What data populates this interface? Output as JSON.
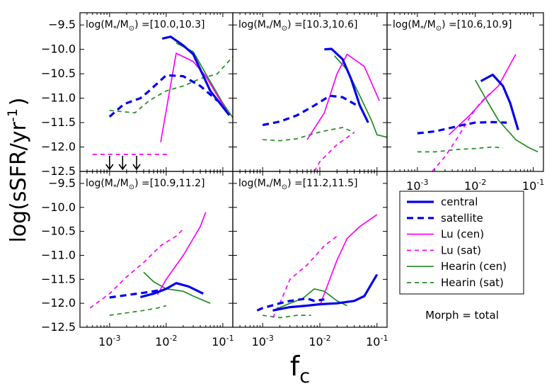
{
  "chart_data": {
    "type": "line",
    "xlabel": "f",
    "xlabel_sub": "c",
    "ylabel": "log(sSFR/yr",
    "ylabel_sup": "-1",
    "ylabel_close": ")",
    "xscale": "log",
    "xlim": [
      0.0003,
      0.15
    ],
    "ylim": [
      -12.5,
      -9.25
    ],
    "yticks": [
      -12.5,
      -12.0,
      -11.5,
      -11.0,
      -10.5,
      -10.0,
      -9.5
    ],
    "ytick_labels": [
      "−12.5",
      "−12.0",
      "−11.5",
      "−11.0",
      "−10.5",
      "−10.0",
      "−9.5"
    ],
    "xticks": [
      0.001,
      0.01,
      0.1
    ],
    "xtick_labels": [
      [
        "10",
        "-3"
      ],
      [
        "10",
        "-2"
      ],
      [
        "10",
        "-1"
      ]
    ],
    "series_styles": {
      "central": {
        "color": "#0000ee",
        "dash": "",
        "width": 3.2
      },
      "satellite": {
        "color": "#0000ee",
        "dash": "9,6",
        "width": 3.2
      },
      "lu_cen": {
        "color": "#ff00ff",
        "dash": "",
        "width": 1.7
      },
      "lu_sat": {
        "color": "#ff00ff",
        "dash": "6,5",
        "width": 1.7
      },
      "hearin_cen": {
        "color": "#228b22",
        "dash": "",
        "width": 1.7
      },
      "hearin_sat": {
        "color": "#228b22",
        "dash": "6,5",
        "width": 1.7
      }
    },
    "legend": {
      "position": "lower-right",
      "entries": [
        {
          "key": "central",
          "label": "central"
        },
        {
          "key": "satellite",
          "label": "satellite"
        },
        {
          "key": "lu_cen",
          "label": "Lu (cen)"
        },
        {
          "key": "lu_sat",
          "label": "Lu (sat)"
        },
        {
          "key": "hearin_cen",
          "label": "Hearin (cen)"
        },
        {
          "key": "hearin_sat",
          "label": "Hearin (sat)"
        }
      ]
    },
    "annotation": "Morph = total",
    "panels": [
      {
        "title_pre": "log(M",
        "title_mid": "/M",
        "title_post": ") =[10.0,10.3]",
        "series": {
          "central": [
            [
              0.0085,
              -9.78
            ],
            [
              0.012,
              -9.74
            ],
            [
              0.02,
              -9.92
            ],
            [
              0.03,
              -10.1
            ],
            [
              0.06,
              -10.85
            ],
            [
              0.13,
              -11.35
            ]
          ],
          "satellite": [
            [
              0.001,
              -11.38
            ],
            [
              0.0018,
              -11.12
            ],
            [
              0.0035,
              -11.0
            ],
            [
              0.005,
              -10.85
            ],
            [
              0.01,
              -10.53
            ],
            [
              0.02,
              -10.55
            ],
            [
              0.04,
              -10.75
            ],
            [
              0.08,
              -11.05
            ]
          ],
          "lu_cen": [
            [
              0.008,
              -11.9
            ],
            [
              0.015,
              -10.08
            ],
            [
              0.03,
              -10.25
            ],
            [
              0.05,
              -10.55
            ],
            [
              0.08,
              -10.95
            ],
            [
              0.13,
              -11.35
            ]
          ],
          "lu_sat": [
            [
              0.0005,
              -12.15
            ],
            [
              0.011,
              -12.15
            ]
          ],
          "hearin_cen": [
            [
              0.015,
              -9.87
            ],
            [
              0.03,
              -10.05
            ],
            [
              0.05,
              -10.5
            ],
            [
              0.1,
              -11.1
            ],
            [
              0.15,
              -11.4
            ]
          ],
          "hearin_sat": [
            [
              0.001,
              -11.25
            ],
            [
              0.0018,
              -11.28
            ],
            [
              0.0028,
              -11.3
            ],
            [
              0.005,
              -11.05
            ],
            [
              0.01,
              -10.85
            ],
            [
              0.02,
              -10.75
            ],
            [
              0.04,
              -10.6
            ],
            [
              0.08,
              -10.5
            ],
            [
              0.15,
              -10.15
            ]
          ]
        },
        "arrows": [
          0.001,
          0.0017,
          0.003
        ]
      },
      {
        "title_pre": "log(M",
        "title_mid": "/M",
        "title_post": ") =[10.3,10.6]",
        "series": {
          "central": [
            [
              0.012,
              -10.0
            ],
            [
              0.016,
              -9.99
            ],
            [
              0.025,
              -10.2
            ],
            [
              0.035,
              -10.6
            ],
            [
              0.05,
              -11.15
            ],
            [
              0.07,
              -11.5
            ]
          ],
          "satellite": [
            [
              0.001,
              -11.55
            ],
            [
              0.002,
              -11.48
            ],
            [
              0.004,
              -11.35
            ],
            [
              0.008,
              -11.15
            ],
            [
              0.015,
              -10.95
            ],
            [
              0.025,
              -10.98
            ],
            [
              0.045,
              -11.15
            ]
          ],
          "lu_cen": [
            [
              0.006,
              -11.85
            ],
            [
              0.012,
              -11.3
            ],
            [
              0.02,
              -10.5
            ],
            [
              0.03,
              -10.1
            ],
            [
              0.06,
              -10.35
            ],
            [
              0.11,
              -11.05
            ]
          ],
          "lu_sat": [
            [
              0.008,
              -12.5
            ],
            [
              0.01,
              -12.3
            ],
            [
              0.02,
              -11.95
            ],
            [
              0.04,
              -11.7
            ]
          ],
          "hearin_cen": [
            [
              0.018,
              -10.13
            ],
            [
              0.03,
              -10.42
            ],
            [
              0.05,
              -10.95
            ],
            [
              0.08,
              -11.45
            ],
            [
              0.1,
              -11.75
            ],
            [
              0.15,
              -11.8
            ]
          ],
          "hearin_sat": [
            [
              0.001,
              -11.85
            ],
            [
              0.002,
              -11.87
            ],
            [
              0.004,
              -11.83
            ],
            [
              0.008,
              -11.72
            ],
            [
              0.015,
              -11.65
            ],
            [
              0.025,
              -11.6
            ],
            [
              0.04,
              -11.7
            ]
          ]
        },
        "arrows": []
      },
      {
        "title_pre": "log(M",
        "title_mid": "/M",
        "title_post": ") =[10.6,10.9]",
        "series": {
          "central": [
            [
              0.0125,
              -10.65
            ],
            [
              0.02,
              -10.52
            ],
            [
              0.03,
              -10.75
            ],
            [
              0.04,
              -11.1
            ],
            [
              0.055,
              -11.65
            ]
          ],
          "satellite": [
            [
              0.001,
              -11.72
            ],
            [
              0.002,
              -11.68
            ],
            [
              0.004,
              -11.6
            ],
            [
              0.006,
              -11.55
            ],
            [
              0.01,
              -11.5
            ],
            [
              0.02,
              -11.49
            ],
            [
              0.035,
              -11.5
            ]
          ],
          "lu_cen": [
            [
              0.0035,
              -11.75
            ],
            [
              0.008,
              -11.35
            ],
            [
              0.015,
              -11.0
            ],
            [
              0.025,
              -10.75
            ],
            [
              0.05,
              -10.1
            ]
          ],
          "lu_sat": [
            [
              0.0018,
              -12.5
            ],
            [
              0.003,
              -12.2
            ],
            [
              0.005,
              -11.8
            ],
            [
              0.008,
              -11.4
            ],
            [
              0.012,
              -11.1
            ],
            [
              0.02,
              -10.85
            ]
          ],
          "hearin_cen": [
            [
              0.01,
              -10.63
            ],
            [
              0.015,
              -11.0
            ],
            [
              0.025,
              -11.45
            ],
            [
              0.05,
              -11.85
            ],
            [
              0.08,
              -12.0
            ],
            [
              0.12,
              -12.1
            ]
          ],
          "hearin_sat": [
            [
              0.001,
              -12.1
            ],
            [
              0.002,
              -12.1
            ],
            [
              0.005,
              -12.05
            ],
            [
              0.01,
              -12.03
            ],
            [
              0.02,
              -12.0
            ],
            [
              0.03,
              -12.02
            ]
          ]
        },
        "arrows": []
      },
      {
        "title_pre": "log(M",
        "title_mid": "/M",
        "title_post": ") =[10.9,11.2]",
        "series": {
          "central": [
            [
              0.0035,
              -11.87
            ],
            [
              0.006,
              -11.8
            ],
            [
              0.01,
              -11.7
            ],
            [
              0.015,
              -11.58
            ],
            [
              0.025,
              -11.65
            ],
            [
              0.045,
              -11.8
            ]
          ],
          "satellite": [
            [
              0.001,
              -11.88
            ],
            [
              0.002,
              -11.83
            ],
            [
              0.004,
              -11.78
            ],
            [
              0.006,
              -11.75
            ],
            [
              0.008,
              -11.72
            ]
          ],
          "lu_cen": [
            [
              0.007,
              -11.82
            ],
            [
              0.01,
              -11.5
            ],
            [
              0.02,
              -11.0
            ],
            [
              0.04,
              -10.4
            ],
            [
              0.05,
              -10.1
            ]
          ],
          "lu_sat": [
            [
              0.00045,
              -12.1
            ],
            [
              0.001,
              -11.8
            ],
            [
              0.002,
              -11.45
            ],
            [
              0.004,
              -11.15
            ],
            [
              0.008,
              -10.8
            ],
            [
              0.015,
              -10.6
            ],
            [
              0.02,
              -10.45
            ]
          ],
          "hearin_cen": [
            [
              0.004,
              -11.35
            ],
            [
              0.006,
              -11.55
            ],
            [
              0.01,
              -11.7
            ],
            [
              0.02,
              -11.75
            ],
            [
              0.03,
              -11.85
            ],
            [
              0.06,
              -12.0
            ]
          ],
          "hearin_sat": [
            [
              0.001,
              -12.25
            ],
            [
              0.002,
              -12.2
            ],
            [
              0.004,
              -12.15
            ],
            [
              0.007,
              -12.1
            ],
            [
              0.01,
              -12.05
            ]
          ]
        },
        "arrows": []
      },
      {
        "title_pre": "log(M",
        "title_mid": "/M",
        "title_post": ") =[11.2,11.5]",
        "series": {
          "central": [
            [
              0.0015,
              -12.15
            ],
            [
              0.003,
              -12.08
            ],
            [
              0.006,
              -12.05
            ],
            [
              0.01,
              -12.02
            ],
            [
              0.02,
              -12.0
            ],
            [
              0.04,
              -11.95
            ],
            [
              0.06,
              -11.85
            ],
            [
              0.1,
              -11.4
            ]
          ],
          "satellite": [
            [
              0.0008,
              -12.15
            ],
            [
              0.001,
              -12.1
            ],
            [
              0.002,
              -12.0
            ],
            [
              0.003,
              -11.95
            ],
            [
              0.006,
              -11.9
            ],
            [
              0.008,
              -11.95
            ],
            [
              0.012,
              -11.92
            ]
          ],
          "lu_cen": [
            [
              0.01,
              -12.05
            ],
            [
              0.02,
              -11.1
            ],
            [
              0.03,
              -10.65
            ],
            [
              0.05,
              -10.4
            ],
            [
              0.1,
              -10.15
            ]
          ],
          "lu_sat": [
            [
              0.0015,
              -12.3
            ],
            [
              0.002,
              -12.0
            ],
            [
              0.003,
              -11.5
            ],
            [
              0.006,
              -11.2
            ],
            [
              0.012,
              -10.8
            ],
            [
              0.02,
              -10.6
            ]
          ],
          "hearin_cen": [
            [
              0.0015,
              -12.15
            ],
            [
              0.003,
              -12.0
            ],
            [
              0.005,
              -11.9
            ],
            [
              0.008,
              -11.7
            ],
            [
              0.012,
              -11.75
            ],
            [
              0.02,
              -11.95
            ],
            [
              0.03,
              -12.05
            ]
          ],
          "hearin_sat": [
            [
              0.001,
              -12.25
            ],
            [
              0.002,
              -12.3
            ],
            [
              0.004,
              -12.25
            ],
            [
              0.007,
              -12.25
            ]
          ]
        },
        "arrows": []
      }
    ]
  }
}
